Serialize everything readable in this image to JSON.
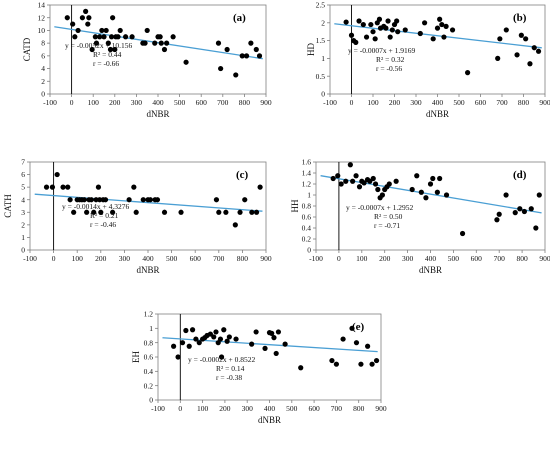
{
  "chart_data": [
    {
      "type": "scatter",
      "panel": "(a)",
      "xlabel": "dNBR",
      "ylabel": "CATD",
      "xlim": [
        -100,
        900
      ],
      "ylim": [
        0,
        14
      ],
      "xticks": [
        -100,
        0,
        100,
        200,
        300,
        400,
        500,
        600,
        700,
        800,
        900
      ],
      "yticks": [
        0,
        2,
        4,
        6,
        8,
        10,
        12,
        14
      ],
      "trendline": {
        "slope": -0.0052,
        "intercept": 10.156
      },
      "annotation": [
        "y = -0.0052x + 10.156",
        "R² = 0.44",
        "r = -0.66"
      ],
      "points": [
        [
          -20,
          12
        ],
        [
          5,
          11
        ],
        [
          15,
          9
        ],
        [
          30,
          10
        ],
        [
          50,
          12
        ],
        [
          65,
          13
        ],
        [
          75,
          11
        ],
        [
          80,
          12
        ],
        [
          95,
          7
        ],
        [
          110,
          9
        ],
        [
          115,
          8
        ],
        [
          130,
          9
        ],
        [
          140,
          10
        ],
        [
          150,
          9
        ],
        [
          160,
          10
        ],
        [
          170,
          8
        ],
        [
          180,
          7
        ],
        [
          185,
          9
        ],
        [
          190,
          12
        ],
        [
          200,
          7
        ],
        [
          205,
          9
        ],
        [
          215,
          9
        ],
        [
          225,
          10
        ],
        [
          250,
          9
        ],
        [
          280,
          9
        ],
        [
          330,
          8
        ],
        [
          340,
          8
        ],
        [
          350,
          10
        ],
        [
          385,
          8
        ],
        [
          400,
          9
        ],
        [
          410,
          9
        ],
        [
          415,
          8
        ],
        [
          430,
          7
        ],
        [
          440,
          8
        ],
        [
          470,
          9
        ],
        [
          530,
          5
        ],
        [
          680,
          8
        ],
        [
          690,
          4
        ],
        [
          720,
          7
        ],
        [
          760,
          3
        ],
        [
          790,
          6
        ],
        [
          810,
          6
        ],
        [
          830,
          8
        ],
        [
          855,
          7
        ],
        [
          870,
          6
        ]
      ]
    },
    {
      "type": "scatter",
      "panel": "(b)",
      "xlabel": "dNBR",
      "ylabel": "HD",
      "xlim": [
        -100,
        900
      ],
      "ylim": [
        0,
        2.5
      ],
      "xticks": [
        -100,
        0,
        100,
        200,
        300,
        400,
        500,
        600,
        700,
        800,
        900
      ],
      "yticks": [
        0,
        0.5,
        1,
        1.5,
        2,
        2.5
      ],
      "ytick_labels": [
        "0",
        "0.5",
        "1",
        "1.5",
        "2",
        "2.5"
      ],
      "trendline": {
        "slope": -0.0007,
        "intercept": 1.9169
      },
      "annotation": [
        "y = -0.0007x + 1.9169",
        "R² = 0.32",
        "r = -0.56"
      ],
      "points": [
        [
          -25,
          2.02
        ],
        [
          0,
          1.65
        ],
        [
          10,
          1.5
        ],
        [
          20,
          1.45
        ],
        [
          35,
          2.05
        ],
        [
          55,
          1.95
        ],
        [
          70,
          1.6
        ],
        [
          90,
          1.95
        ],
        [
          100,
          1.75
        ],
        [
          110,
          1.55
        ],
        [
          120,
          2.0
        ],
        [
          130,
          2.1
        ],
        [
          135,
          1.85
        ],
        [
          150,
          1.9
        ],
        [
          160,
          1.85
        ],
        [
          170,
          2.05
        ],
        [
          180,
          1.6
        ],
        [
          190,
          1.8
        ],
        [
          200,
          1.95
        ],
        [
          210,
          2.05
        ],
        [
          215,
          1.75
        ],
        [
          250,
          1.8
        ],
        [
          320,
          1.7
        ],
        [
          340,
          2.0
        ],
        [
          380,
          1.55
        ],
        [
          400,
          1.85
        ],
        [
          410,
          2.1
        ],
        [
          420,
          1.95
        ],
        [
          430,
          1.6
        ],
        [
          440,
          1.9
        ],
        [
          470,
          1.8
        ],
        [
          540,
          0.6
        ],
        [
          680,
          1.0
        ],
        [
          690,
          1.55
        ],
        [
          720,
          1.8
        ],
        [
          770,
          1.1
        ],
        [
          790,
          1.65
        ],
        [
          810,
          1.55
        ],
        [
          830,
          0.85
        ],
        [
          850,
          1.3
        ],
        [
          870,
          1.2
        ]
      ]
    },
    {
      "type": "scatter",
      "panel": "(c)",
      "xlabel": "dNBR",
      "ylabel": "CATH",
      "xlim": [
        -100,
        900
      ],
      "ylim": [
        0,
        7
      ],
      "xticks": [
        -100,
        0,
        100,
        200,
        300,
        400,
        500,
        600,
        700,
        800,
        900
      ],
      "yticks": [
        0,
        1,
        2,
        3,
        4,
        5,
        6,
        7
      ],
      "trendline": {
        "slope": -0.0014,
        "intercept": 4.3276
      },
      "annotation": [
        "y = -0.0014x + 4.3276",
        "R² = 0.21",
        "r = -0.46"
      ],
      "points": [
        [
          -30,
          5
        ],
        [
          -5,
          5
        ],
        [
          15,
          6
        ],
        [
          40,
          5
        ],
        [
          60,
          5
        ],
        [
          70,
          4
        ],
        [
          85,
          3
        ],
        [
          100,
          4
        ],
        [
          110,
          4
        ],
        [
          120,
          4
        ],
        [
          130,
          4
        ],
        [
          140,
          3
        ],
        [
          150,
          4
        ],
        [
          160,
          4
        ],
        [
          170,
          3
        ],
        [
          180,
          4
        ],
        [
          190,
          5
        ],
        [
          195,
          4
        ],
        [
          200,
          3
        ],
        [
          210,
          4
        ],
        [
          220,
          4
        ],
        [
          250,
          3
        ],
        [
          320,
          4
        ],
        [
          340,
          5
        ],
        [
          350,
          3
        ],
        [
          380,
          4
        ],
        [
          400,
          4
        ],
        [
          410,
          4
        ],
        [
          430,
          4
        ],
        [
          440,
          4
        ],
        [
          470,
          3
        ],
        [
          540,
          3
        ],
        [
          690,
          4
        ],
        [
          700,
          3
        ],
        [
          730,
          3
        ],
        [
          770,
          2
        ],
        [
          790,
          3
        ],
        [
          810,
          4
        ],
        [
          840,
          3
        ],
        [
          860,
          3
        ],
        [
          875,
          5
        ]
      ]
    },
    {
      "type": "scatter",
      "panel": "(d)",
      "xlabel": "dNBR",
      "ylabel": "HH",
      "xlim": [
        -100,
        900
      ],
      "ylim": [
        0,
        1.6
      ],
      "xticks": [
        -100,
        0,
        100,
        200,
        300,
        400,
        500,
        600,
        700,
        800,
        900
      ],
      "yticks": [
        0,
        0.2,
        0.4,
        0.6,
        0.8,
        1,
        1.2,
        1.4,
        1.6
      ],
      "ytick_labels": [
        "0",
        "0.2",
        "0.4",
        "0.6",
        "0.8",
        "1",
        "1.2",
        "1.4",
        "1.6"
      ],
      "trendline": {
        "slope": -0.0007,
        "intercept": 1.2952
      },
      "annotation": [
        "y = -0.0007x + 1.2952",
        "R² = 0.50",
        "r = -0.71"
      ],
      "points": [
        [
          -25,
          1.3
        ],
        [
          -5,
          1.35
        ],
        [
          10,
          1.2
        ],
        [
          30,
          1.25
        ],
        [
          50,
          1.55
        ],
        [
          60,
          1.25
        ],
        [
          75,
          1.35
        ],
        [
          90,
          1.15
        ],
        [
          100,
          1.25
        ],
        [
          110,
          1.22
        ],
        [
          125,
          1.28
        ],
        [
          135,
          1.25
        ],
        [
          150,
          1.3
        ],
        [
          160,
          1.2
        ],
        [
          170,
          1.1
        ],
        [
          180,
          0.95
        ],
        [
          190,
          1.0
        ],
        [
          200,
          1.1
        ],
        [
          210,
          1.15
        ],
        [
          220,
          1.2
        ],
        [
          250,
          1.25
        ],
        [
          320,
          1.1
        ],
        [
          340,
          1.35
        ],
        [
          360,
          1.05
        ],
        [
          380,
          0.95
        ],
        [
          400,
          1.2
        ],
        [
          410,
          1.3
        ],
        [
          430,
          1.05
        ],
        [
          440,
          1.3
        ],
        [
          470,
          1.0
        ],
        [
          540,
          0.3
        ],
        [
          690,
          0.55
        ],
        [
          700,
          0.65
        ],
        [
          730,
          1.0
        ],
        [
          770,
          0.68
        ],
        [
          790,
          0.75
        ],
        [
          810,
          0.7
        ],
        [
          840,
          0.75
        ],
        [
          860,
          0.4
        ],
        [
          875,
          1.0
        ]
      ]
    },
    {
      "type": "scatter",
      "panel": "(e)",
      "xlabel": "dNBR",
      "ylabel": "EH",
      "xlim": [
        -100,
        900
      ],
      "ylim": [
        0,
        1.2
      ],
      "xticks": [
        -100,
        0,
        100,
        200,
        300,
        400,
        500,
        600,
        700,
        800,
        900
      ],
      "yticks": [
        0,
        0.2,
        0.4,
        0.6,
        0.8,
        1,
        1.2
      ],
      "ytick_labels": [
        "0",
        "0.2",
        "0.4",
        "0.6",
        "0.8",
        "1",
        "1.2"
      ],
      "trendline": {
        "slope": -0.0002,
        "intercept": 0.8522
      },
      "annotation": [
        "y = -0.0002x + 0.8522",
        "R² = 0.14",
        "r = -0.38"
      ],
      "points": [
        [
          -30,
          0.75
        ],
        [
          -10,
          0.6
        ],
        [
          10,
          0.8
        ],
        [
          25,
          0.97
        ],
        [
          40,
          0.75
        ],
        [
          55,
          0.98
        ],
        [
          70,
          0.85
        ],
        [
          85,
          0.8
        ],
        [
          100,
          0.85
        ],
        [
          110,
          0.87
        ],
        [
          120,
          0.9
        ],
        [
          135,
          0.92
        ],
        [
          150,
          0.88
        ],
        [
          160,
          0.95
        ],
        [
          170,
          0.8
        ],
        [
          180,
          0.85
        ],
        [
          185,
          0.6
        ],
        [
          195,
          0.98
        ],
        [
          210,
          0.82
        ],
        [
          220,
          0.88
        ],
        [
          250,
          0.85
        ],
        [
          320,
          0.78
        ],
        [
          340,
          0.95
        ],
        [
          380,
          0.72
        ],
        [
          400,
          0.94
        ],
        [
          410,
          0.93
        ],
        [
          420,
          0.87
        ],
        [
          430,
          0.65
        ],
        [
          440,
          0.95
        ],
        [
          470,
          0.78
        ],
        [
          540,
          0.45
        ],
        [
          680,
          0.55
        ],
        [
          700,
          0.5
        ],
        [
          730,
          0.85
        ],
        [
          770,
          1.0
        ],
        [
          790,
          0.8
        ],
        [
          810,
          0.5
        ],
        [
          840,
          0.75
        ],
        [
          860,
          0.5
        ],
        [
          880,
          0.55
        ]
      ]
    }
  ],
  "style": {
    "trendline_color": "#4a9fd4",
    "point_color": "#000000",
    "axis_color": "#7f7f7f",
    "zero_line_color": "#000000"
  }
}
